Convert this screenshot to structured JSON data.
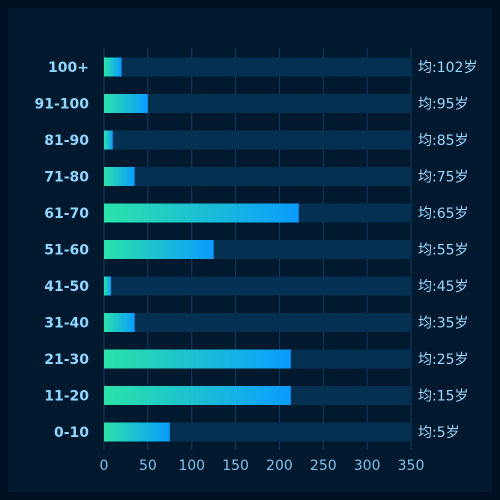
{
  "colors": {
    "background": "#000f22",
    "panel": "#00192f",
    "track": "#043052",
    "grid": "#103a5e",
    "bar_start": "#2be3a8",
    "bar_end": "#0a9cff",
    "category_text": "#8fd6ff",
    "value_text": "#9ad8ff",
    "tick_text": "#7ec3ee"
  },
  "chart_data": {
    "type": "bar",
    "orientation": "horizontal",
    "categories": [
      "100+",
      "91-100",
      "81-90",
      "71-80",
      "61-70",
      "51-60",
      "41-50",
      "31-40",
      "21-30",
      "11-20",
      "0-10"
    ],
    "values": [
      20,
      50,
      10,
      35,
      222,
      125,
      8,
      35,
      213,
      213,
      75
    ],
    "value_labels": [
      "均:102岁",
      "均:95岁",
      "均:85岁",
      "均:75岁",
      "均:65岁",
      "均:55岁",
      "均:45岁",
      "均:35岁",
      "均:25岁",
      "均:15岁",
      "均:5岁"
    ],
    "xlim": [
      0,
      350
    ],
    "xticks": [
      "0",
      "50",
      "100",
      "150",
      "200",
      "250",
      "300",
      "350"
    ],
    "grid": true,
    "title": "",
    "xlabel": "",
    "ylabel": ""
  }
}
